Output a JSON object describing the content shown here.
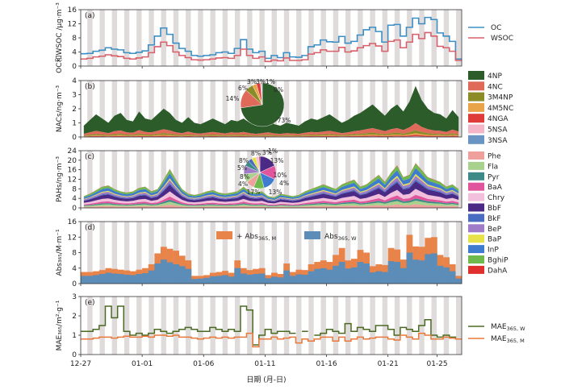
{
  "chart_data": [
    {
      "panel": "(a)",
      "type": "line",
      "ylabel": "OC和WSOC /μg·m⁻³",
      "ylim": [
        0,
        16
      ],
      "yticks": [
        "0",
        "4",
        "8",
        "12",
        "16"
      ],
      "legend_placement": "right",
      "series": [
        {
          "name": "OC",
          "color": "#3b8fc4",
          "values": [
            3.5,
            3.6,
            4.2,
            4.5,
            5.2,
            4.8,
            4.6,
            3.8,
            3.6,
            3.9,
            4.3,
            6.0,
            8.5,
            10.8,
            9.0,
            6.5,
            5.0,
            4.2,
            3.0,
            2.8,
            3.0,
            3.2,
            3.8,
            4.0,
            3.6,
            5.0,
            7.5,
            4.8,
            3.8,
            4.2,
            2.2,
            3.0,
            2.4,
            3.8,
            2.6,
            2.5,
            3.0,
            5.5,
            6.0,
            7.4,
            6.9,
            6.8,
            8.4,
            6.5,
            7.0,
            8.8,
            10.3,
            11.0,
            9.8,
            6.8,
            11.6,
            11.8,
            8.5,
            11.0,
            13.6,
            12.0,
            13.8,
            13.2,
            9.4,
            8.5,
            7.0,
            2.0
          ]
        },
        {
          "name": "WSOC",
          "color": "#d95f6b",
          "values": [
            2.0,
            2.2,
            2.6,
            2.8,
            3.2,
            2.9,
            2.7,
            2.2,
            2.0,
            2.3,
            2.6,
            3.8,
            5.5,
            6.8,
            5.8,
            4.0,
            3.0,
            2.4,
            1.8,
            1.7,
            1.8,
            2.0,
            2.3,
            2.4,
            2.2,
            3.0,
            4.8,
            3.0,
            2.2,
            2.6,
            1.3,
            1.7,
            1.5,
            2.3,
            1.6,
            1.6,
            1.8,
            3.4,
            3.8,
            4.6,
            4.2,
            4.2,
            5.3,
            4.0,
            4.3,
            5.2,
            5.8,
            6.4,
            5.7,
            4.2,
            7.0,
            7.4,
            5.2,
            6.8,
            9.0,
            7.8,
            9.5,
            8.5,
            5.6,
            5.2,
            4.2,
            1.6
          ]
        }
      ]
    },
    {
      "panel": "(b)",
      "type": "area",
      "ylabel": "NACs/ng·m⁻³",
      "ylim": [
        0,
        4
      ],
      "yticks": [
        "0",
        "1",
        "2",
        "3",
        "4"
      ],
      "legend_placement": "right",
      "series": [
        {
          "name": "4NP",
          "color": "#2d5c2b"
        },
        {
          "name": "4NC",
          "color": "#e06a5a"
        },
        {
          "name": "3M4NP",
          "color": "#8b8b28"
        },
        {
          "name": "4M5NC",
          "color": "#e9a44a"
        },
        {
          "name": "4NGA",
          "color": "#e03b3b"
        },
        {
          "name": "5NSA",
          "color": "#f2b6c8"
        },
        {
          "name": "3NSA",
          "color": "#6a95c2"
        }
      ],
      "total": [
        0.8,
        1.2,
        1.6,
        1.3,
        1.0,
        1.5,
        1.7,
        1.2,
        1.1,
        1.8,
        1.3,
        1.2,
        1.6,
        2.0,
        1.7,
        1.2,
        1.0,
        1.4,
        1.0,
        0.9,
        1.1,
        1.3,
        1.1,
        0.9,
        1.2,
        1.1,
        1.3,
        1.0,
        0.8,
        1.0,
        1.2,
        0.9,
        0.8,
        1.0,
        0.9,
        0.8,
        1.1,
        1.3,
        1.2,
        1.4,
        1.6,
        1.3,
        1.0,
        1.2,
        1.5,
        1.7,
        2.0,
        2.3,
        1.9,
        1.5,
        2.0,
        2.3,
        1.8,
        2.5,
        3.6,
        2.6,
        2.0,
        1.7,
        1.6,
        1.3,
        1.9,
        1.4
      ],
      "pie": {
        "labels": [
          "73%",
          "14%",
          "6%",
          "3%",
          "3%",
          "1%",
          "0%"
        ],
        "values": [
          73,
          14,
          6,
          3,
          3,
          1,
          0.4
        ]
      }
    },
    {
      "panel": "(c)",
      "type": "area",
      "ylabel": "PAHs/ng·m⁻³",
      "ylim": [
        0,
        24
      ],
      "yticks": [
        "0",
        "4",
        "8",
        "12",
        "16",
        "20",
        "24"
      ],
      "legend_placement": "right",
      "series": [
        {
          "name": "Phe",
          "color": "#f0a09c"
        },
        {
          "name": "Fla",
          "color": "#a9d18e"
        },
        {
          "name": "Pyr",
          "color": "#3d8a86"
        },
        {
          "name": "BaA",
          "color": "#e0559c"
        },
        {
          "name": "Chry",
          "color": "#f2c0dc"
        },
        {
          "name": "BbF",
          "color": "#4b2a86"
        },
        {
          "name": "BkF",
          "color": "#4a6cc0"
        },
        {
          "name": "BeP",
          "color": "#a07cc8"
        },
        {
          "name": "BaP",
          "color": "#e8e24a"
        },
        {
          "name": "InP",
          "color": "#3f7cd0"
        },
        {
          "name": "BghiP",
          "color": "#6fba4c"
        },
        {
          "name": "DahA",
          "color": "#e0302e"
        }
      ],
      "total": [
        5,
        6,
        7.5,
        9,
        9.5,
        8,
        7,
        6.5,
        7,
        8.5,
        9,
        7,
        8,
        12,
        16.5,
        12,
        8,
        6,
        5.5,
        6,
        7,
        7.5,
        6.5,
        6,
        6.5,
        7,
        9,
        7,
        6.5,
        7,
        5,
        4.5,
        6,
        5.5,
        5,
        5.5,
        7,
        8,
        9,
        10,
        9,
        8,
        10,
        11,
        12,
        9,
        10,
        12,
        14,
        11,
        15,
        18,
        13,
        14,
        19,
        16,
        13,
        12,
        11,
        9,
        10,
        8
      ],
      "pie": {
        "labels": [
          "17%",
          "13%",
          "13%",
          "10%",
          "8%",
          "8%",
          "8%",
          "5%",
          "4%",
          "4%",
          "3%",
          "1%"
        ],
        "values": [
          17,
          13,
          13,
          10,
          8,
          8,
          8,
          5,
          4,
          4,
          3,
          1
        ]
      }
    },
    {
      "panel": "(d)",
      "type": "bar",
      "ylabel": "Abs₃₆₅/M·m⁻¹",
      "ylim": [
        0,
        16
      ],
      "yticks": [
        "0",
        "4",
        "8",
        "12",
        "16"
      ],
      "legend_placement": "top",
      "legend_main": [
        "+ Abs",
        "Abs"
      ],
      "legend_sub": [
        "365, M",
        "365, W"
      ],
      "series": [
        {
          "name": "Abs365,M",
          "color": "#e8834a",
          "values": [
            3.0,
            3.0,
            3.2,
            3.5,
            4.0,
            3.8,
            3.6,
            3.4,
            3.2,
            3.6,
            4.0,
            5.0,
            7.8,
            9.5,
            9.0,
            8.5,
            7.2,
            6.0,
            2.0,
            2.0,
            2.2,
            2.8,
            3.0,
            3.3,
            2.8,
            6.0,
            4.0,
            3.5,
            3.8,
            4.0,
            2.2,
            2.8,
            2.5,
            5.2,
            3.0,
            3.6,
            3.5,
            5.0,
            5.6,
            6.0,
            5.6,
            7.4,
            9.2,
            6.0,
            6.4,
            8.7,
            8.0,
            4.5,
            5.0,
            4.8,
            9.2,
            8.8,
            6.2,
            12.6,
            9.6,
            9.5,
            11.8,
            12.0,
            7.4,
            6.8,
            5.0,
            2.0
          ]
        },
        {
          "name": "Abs365,W",
          "color": "#5b8db8",
          "values": [
            2.0,
            2.0,
            2.2,
            2.5,
            2.8,
            2.6,
            2.5,
            2.3,
            2.2,
            2.5,
            2.7,
            3.4,
            5.2,
            6.2,
            5.5,
            5.0,
            4.5,
            3.8,
            1.2,
            1.3,
            1.5,
            1.9,
            2.0,
            2.2,
            1.8,
            4.0,
            2.6,
            2.3,
            2.5,
            2.6,
            1.4,
            1.8,
            1.6,
            3.4,
            2.0,
            2.4,
            2.3,
            3.2,
            3.8,
            4.0,
            3.6,
            4.6,
            5.6,
            3.9,
            4.2,
            5.6,
            5.2,
            2.9,
            3.2,
            3.0,
            5.8,
            5.6,
            4.0,
            8.0,
            6.2,
            6.0,
            7.6,
            7.8,
            4.6,
            4.2,
            3.2,
            1.3
          ]
        }
      ]
    },
    {
      "panel": "(e)",
      "type": "line",
      "ylabel": "MAE₃₆₅/m²·g⁻¹",
      "ylim": [
        0,
        3
      ],
      "yticks": [
        "0",
        "1",
        "2",
        "3"
      ],
      "legend_placement": "right",
      "legend_main": [
        "MAE",
        "MAE"
      ],
      "legend_sub": [
        "365, W",
        "365, M"
      ],
      "series": [
        {
          "name": "MAE365,W",
          "color": "#4a6a22",
          "values": [
            1.2,
            1.2,
            1.3,
            1.5,
            2.5,
            1.9,
            2.5,
            1.2,
            1.0,
            1.1,
            1.0,
            1.1,
            1.3,
            1.2,
            1.1,
            1.2,
            1.3,
            1.4,
            1.3,
            1.2,
            1.2,
            1.4,
            1.3,
            1.2,
            1.3,
            1.2,
            2.5,
            2.3,
            0.5,
            1.0,
            1.3,
            1.1,
            1.2,
            1.2,
            1.1,
            null,
            1.2,
            null,
            1.0,
            1.1,
            1.3,
            1.2,
            1.1,
            1.6,
            1.2,
            1.4,
            1.3,
            1.2,
            1.5,
            1.5,
            1.3,
            1.0,
            1.4,
            1.3,
            1.2,
            1.5,
            1.8,
            1.0,
            0.9,
            1.0,
            0.9,
            0.8
          ]
        },
        {
          "name": "MAE365,M",
          "color": "#e8793a",
          "values": [
            0.8,
            0.8,
            0.85,
            0.9,
            0.9,
            0.85,
            0.9,
            0.95,
            0.9,
            0.9,
            0.95,
            0.9,
            1.0,
            1.0,
            0.95,
            1.0,
            0.9,
            0.9,
            0.85,
            0.8,
            0.85,
            0.9,
            0.85,
            0.9,
            0.85,
            0.9,
            0.9,
            1.1,
            0.4,
            0.8,
            0.8,
            0.9,
            0.8,
            0.85,
            0.9,
            0.6,
            0.8,
            0.7,
            0.8,
            0.9,
            0.9,
            0.7,
            0.9,
            0.7,
            0.8,
            0.9,
            0.8,
            0.85,
            0.9,
            0.9,
            0.8,
            0.75,
            1.0,
            0.9,
            0.8,
            1.1,
            1.0,
            0.8,
            0.8,
            0.9,
            0.85,
            0.8
          ]
        }
      ]
    }
  ],
  "x_ticks": [
    "12-27",
    "01-01",
    "01-06",
    "01-11",
    "01-16",
    "01-21",
    "01-25"
  ],
  "xlabel": "日期 (月-日)",
  "panel_labels": [
    "(a)",
    "(b)",
    "(c)",
    "(d)",
    "(e)"
  ],
  "background_bands": "gray vertical stripes marking nighttime samples"
}
